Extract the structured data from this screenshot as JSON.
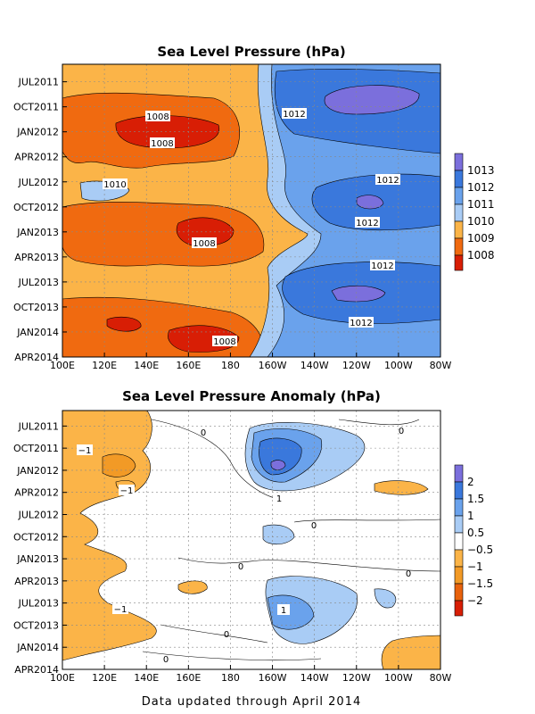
{
  "footer": "Data updated through April 2014",
  "colors": {
    "c1013": "#7b6fdc",
    "c1012": "#3a78dc",
    "c1011": "#6aa2ec",
    "c1010": "#a9ccf5",
    "c1009": "#fbb448",
    "c1008": "#f06a10",
    "c1007": "#d81e05",
    "a2": "#7b6fdc",
    "a15": "#3a78dc",
    "a1": "#6aa2ec",
    "a05": "#a9ccf5",
    "a0": "#ffffff",
    "am05": "#fbb448",
    "am1": "#f29a26",
    "am15": "#e8620c",
    "am2": "#d81e05"
  },
  "chart_data": [
    {
      "type": "heatmap",
      "title": "Sea Level Pressure (hPa)",
      "x_ticks": [
        "100E",
        "120E",
        "140E",
        "160E",
        "180",
        "160W",
        "140W",
        "120W",
        "100W",
        "80W"
      ],
      "y_ticks": [
        "JUL2011",
        "OCT2011",
        "JAN2012",
        "APR2012",
        "JUL2012",
        "OCT2012",
        "JAN2013",
        "APR2013",
        "JUL2013",
        "OCT2013",
        "JAN2014",
        "APR2014"
      ],
      "colorbar_labels": [
        "1013",
        "1012",
        "1011",
        "1010",
        "1009",
        "1008"
      ],
      "contour_labels": [
        "1008",
        "1008",
        "1012",
        "1010",
        "1012",
        "1012",
        "1008",
        "1012",
        "1012",
        "1008"
      ],
      "grid": true
    },
    {
      "type": "heatmap",
      "title": "Sea Level Pressure Anomaly (hPa)",
      "x_ticks": [
        "100E",
        "120E",
        "140E",
        "160E",
        "180",
        "160W",
        "140W",
        "120W",
        "100W",
        "80W"
      ],
      "y_ticks": [
        "JUL2011",
        "OCT2011",
        "JAN2012",
        "APR2012",
        "JUL2012",
        "OCT2012",
        "JAN2013",
        "APR2013",
        "JUL2013",
        "OCT2013",
        "JAN2014",
        "APR2014"
      ],
      "colorbar_labels": [
        "2",
        "1.5",
        "1",
        "0.5",
        "−0.5",
        "−1",
        "−1.5",
        "−2"
      ],
      "contour_labels": [
        "−1",
        "−1",
        "1",
        "1",
        "−1",
        "0",
        "0",
        "0",
        "0",
        "0",
        "0",
        "0"
      ],
      "grid": true
    }
  ]
}
